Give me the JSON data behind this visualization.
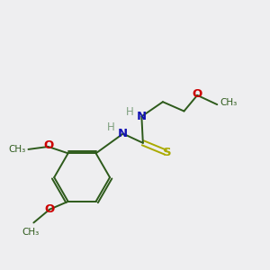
{
  "background_color": "#eeeef0",
  "bond_color": "#2d5a1b",
  "n_color": "#1414b4",
  "o_color": "#cc0000",
  "s_color": "#aaaa00",
  "h_color": "#7fa07f",
  "figsize": [
    3.0,
    3.0
  ],
  "dpi": 100,
  "xlim": [
    0,
    10
  ],
  "ylim": [
    0,
    10
  ]
}
